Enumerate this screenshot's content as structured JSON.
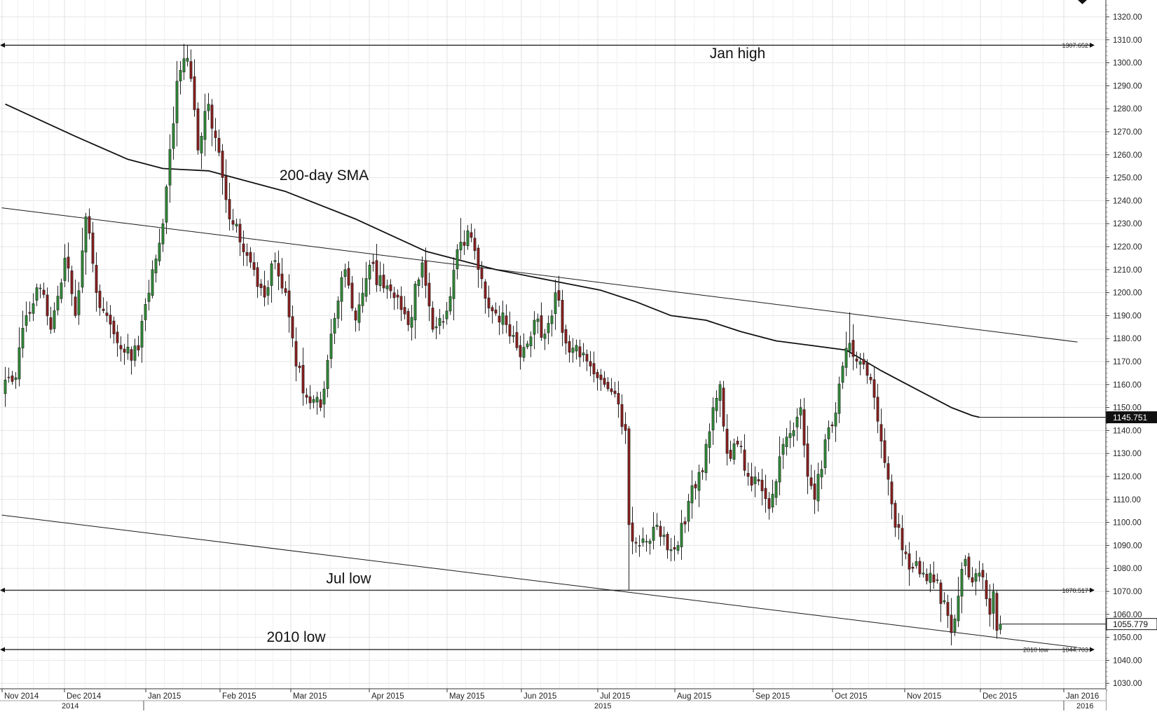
{
  "chart_data": {
    "type": "candlestick",
    "title": "",
    "xlabel": "",
    "ylabel": "",
    "ylim": [
      1026,
      1327
    ],
    "grid": true,
    "y_ticks": [
      1030,
      1040,
      1050,
      1060,
      1070,
      1080,
      1090,
      1100,
      1110,
      1120,
      1130,
      1140,
      1150,
      1160,
      1170,
      1180,
      1190,
      1200,
      1210,
      1220,
      1230,
      1240,
      1250,
      1260,
      1270,
      1280,
      1290,
      1300,
      1310,
      1320
    ],
    "month_labels": [
      "Nov 2014",
      "Dec 2014",
      "Jan 2015",
      "Feb 2015",
      "Mar 2015",
      "Apr 2015",
      "May 2015",
      "Jun 2015",
      "Jul 2015",
      "Aug 2015",
      "Sep 2015",
      "Oct 2015",
      "Nov 2015",
      "Dec 2015",
      "Jan 2016"
    ],
    "year_labels": [
      "2014",
      "2015",
      "2016"
    ],
    "last_price": "1055.779",
    "sma_label": "1145.751",
    "sma_last": 1145.751,
    "anchors": [
      {
        "i": 0,
        "v": 1162
      },
      {
        "i": 3,
        "v": 1163
      },
      {
        "i": 6,
        "v": 1190
      },
      {
        "i": 10,
        "v": 1202
      },
      {
        "i": 13,
        "v": 1184
      },
      {
        "i": 17,
        "v": 1215
      },
      {
        "i": 20,
        "v": 1190
      },
      {
        "i": 23,
        "v": 1233
      },
      {
        "i": 26,
        "v": 1200
      },
      {
        "i": 31,
        "v": 1182
      },
      {
        "i": 34,
        "v": 1174
      },
      {
        "i": 38,
        "v": 1175
      },
      {
        "i": 42,
        "v": 1210
      },
      {
        "i": 45,
        "v": 1230
      },
      {
        "i": 49,
        "v": 1292
      },
      {
        "i": 52,
        "v": 1302
      },
      {
        "i": 55,
        "v": 1262
      },
      {
        "i": 58,
        "v": 1282
      },
      {
        "i": 61,
        "v": 1261
      },
      {
        "i": 64,
        "v": 1232
      },
      {
        "i": 67,
        "v": 1222
      },
      {
        "i": 71,
        "v": 1210
      },
      {
        "i": 74,
        "v": 1198
      },
      {
        "i": 77,
        "v": 1214
      },
      {
        "i": 80,
        "v": 1200
      },
      {
        "i": 83,
        "v": 1168
      },
      {
        "i": 87,
        "v": 1152
      },
      {
        "i": 90,
        "v": 1150
      },
      {
        "i": 93,
        "v": 1182
      },
      {
        "i": 97,
        "v": 1210
      },
      {
        "i": 100,
        "v": 1188
      },
      {
        "i": 104,
        "v": 1212
      },
      {
        "i": 108,
        "v": 1202
      },
      {
        "i": 112,
        "v": 1198
      },
      {
        "i": 115,
        "v": 1186
      },
      {
        "i": 119,
        "v": 1213
      },
      {
        "i": 122,
        "v": 1184
      },
      {
        "i": 126,
        "v": 1192
      },
      {
        "i": 130,
        "v": 1222
      },
      {
        "i": 133,
        "v": 1224
      },
      {
        "i": 136,
        "v": 1206
      },
      {
        "i": 139,
        "v": 1192
      },
      {
        "i": 143,
        "v": 1186
      },
      {
        "i": 147,
        "v": 1172
      },
      {
        "i": 151,
        "v": 1188
      },
      {
        "i": 154,
        "v": 1182
      },
      {
        "i": 157,
        "v": 1200
      },
      {
        "i": 160,
        "v": 1178
      },
      {
        "i": 164,
        "v": 1172
      },
      {
        "i": 167,
        "v": 1168
      },
      {
        "i": 171,
        "v": 1160
      },
      {
        "i": 174,
        "v": 1156
      },
      {
        "i": 177,
        "v": 1140
      },
      {
        "i": 178,
        "v": 1099
      },
      {
        "i": 181,
        "v": 1090
      },
      {
        "i": 185,
        "v": 1098
      },
      {
        "i": 189,
        "v": 1088
      },
      {
        "i": 192,
        "v": 1090
      },
      {
        "i": 196,
        "v": 1116
      },
      {
        "i": 199,
        "v": 1122
      },
      {
        "i": 202,
        "v": 1150
      },
      {
        "i": 204,
        "v": 1160
      },
      {
        "i": 206,
        "v": 1130
      },
      {
        "i": 209,
        "v": 1134
      },
      {
        "i": 212,
        "v": 1120
      },
      {
        "i": 215,
        "v": 1118
      },
      {
        "i": 218,
        "v": 1106
      },
      {
        "i": 222,
        "v": 1134
      },
      {
        "i": 225,
        "v": 1140
      },
      {
        "i": 227,
        "v": 1150
      },
      {
        "i": 229,
        "v": 1120
      },
      {
        "i": 231,
        "v": 1110
      },
      {
        "i": 234,
        "v": 1136
      },
      {
        "i": 236,
        "v": 1142
      },
      {
        "i": 239,
        "v": 1168
      },
      {
        "i": 241,
        "v": 1178
      },
      {
        "i": 244,
        "v": 1170
      },
      {
        "i": 247,
        "v": 1162
      },
      {
        "i": 249,
        "v": 1144
      },
      {
        "i": 251,
        "v": 1126
      },
      {
        "i": 253,
        "v": 1108
      },
      {
        "i": 256,
        "v": 1088
      },
      {
        "i": 259,
        "v": 1080
      },
      {
        "i": 262,
        "v": 1078
      },
      {
        "i": 265,
        "v": 1074
      },
      {
        "i": 268,
        "v": 1066
      },
      {
        "i": 270,
        "v": 1052
      },
      {
        "i": 272,
        "v": 1068
      },
      {
        "i": 274,
        "v": 1084
      },
      {
        "i": 276,
        "v": 1074
      },
      {
        "i": 278,
        "v": 1078
      },
      {
        "i": 281,
        "v": 1060
      },
      {
        "i": 282,
        "v": 1070
      },
      {
        "i": 283,
        "v": 1053
      },
      {
        "i": 284,
        "v": 1055.779
      }
    ],
    "sma": [
      {
        "i": 0,
        "v": 1282
      },
      {
        "i": 20,
        "v": 1268
      },
      {
        "i": 35,
        "v": 1258
      },
      {
        "i": 45,
        "v": 1254
      },
      {
        "i": 58,
        "v": 1253
      },
      {
        "i": 80,
        "v": 1244
      },
      {
        "i": 100,
        "v": 1232
      },
      {
        "i": 120,
        "v": 1218
      },
      {
        "i": 140,
        "v": 1210
      },
      {
        "i": 160,
        "v": 1204
      },
      {
        "i": 170,
        "v": 1201
      },
      {
        "i": 180,
        "v": 1196
      },
      {
        "i": 190,
        "v": 1190
      },
      {
        "i": 200,
        "v": 1188
      },
      {
        "i": 210,
        "v": 1183
      },
      {
        "i": 220,
        "v": 1179
      },
      {
        "i": 230,
        "v": 1177
      },
      {
        "i": 240,
        "v": 1175
      },
      {
        "i": 250,
        "v": 1166
      },
      {
        "i": 260,
        "v": 1158
      },
      {
        "i": 270,
        "v": 1150
      },
      {
        "i": 276,
        "v": 1146.5
      },
      {
        "i": 278,
        "v": 1145.751
      }
    ],
    "hlines": [
      {
        "name": "jan-high",
        "value": 1307.652,
        "label": "1307.652"
      },
      {
        "name": "jul-low",
        "value": 1070.517,
        "label": "1070.517"
      },
      {
        "name": "2010-low",
        "value": 1044.703,
        "label": "1044.703",
        "sublabel": "2010 low"
      }
    ],
    "trendlines": [
      {
        "name": "upper-trendline",
        "from": {
          "i": -1,
          "v": 1236.9
        },
        "to": {
          "i": 306,
          "v": 1178.5
        }
      },
      {
        "name": "lower-trendline",
        "from": {
          "i": -1,
          "v": 1103.2
        },
        "to": {
          "i": 306,
          "v": 1045.6
        }
      }
    ],
    "annotations": [
      {
        "name": "jan-high-annotation",
        "text": "Jan high",
        "i": 209,
        "v": 1302
      },
      {
        "name": "sma-annotation",
        "text": "200-day SMA",
        "i": 91,
        "v": 1249
      },
      {
        "name": "jul-low-annotation",
        "text": "Jul low",
        "i": 98,
        "v": 1073.5
      },
      {
        "name": "2010-low-annotation",
        "text": "2010 low",
        "i": 83,
        "v": 1048
      }
    ]
  }
}
